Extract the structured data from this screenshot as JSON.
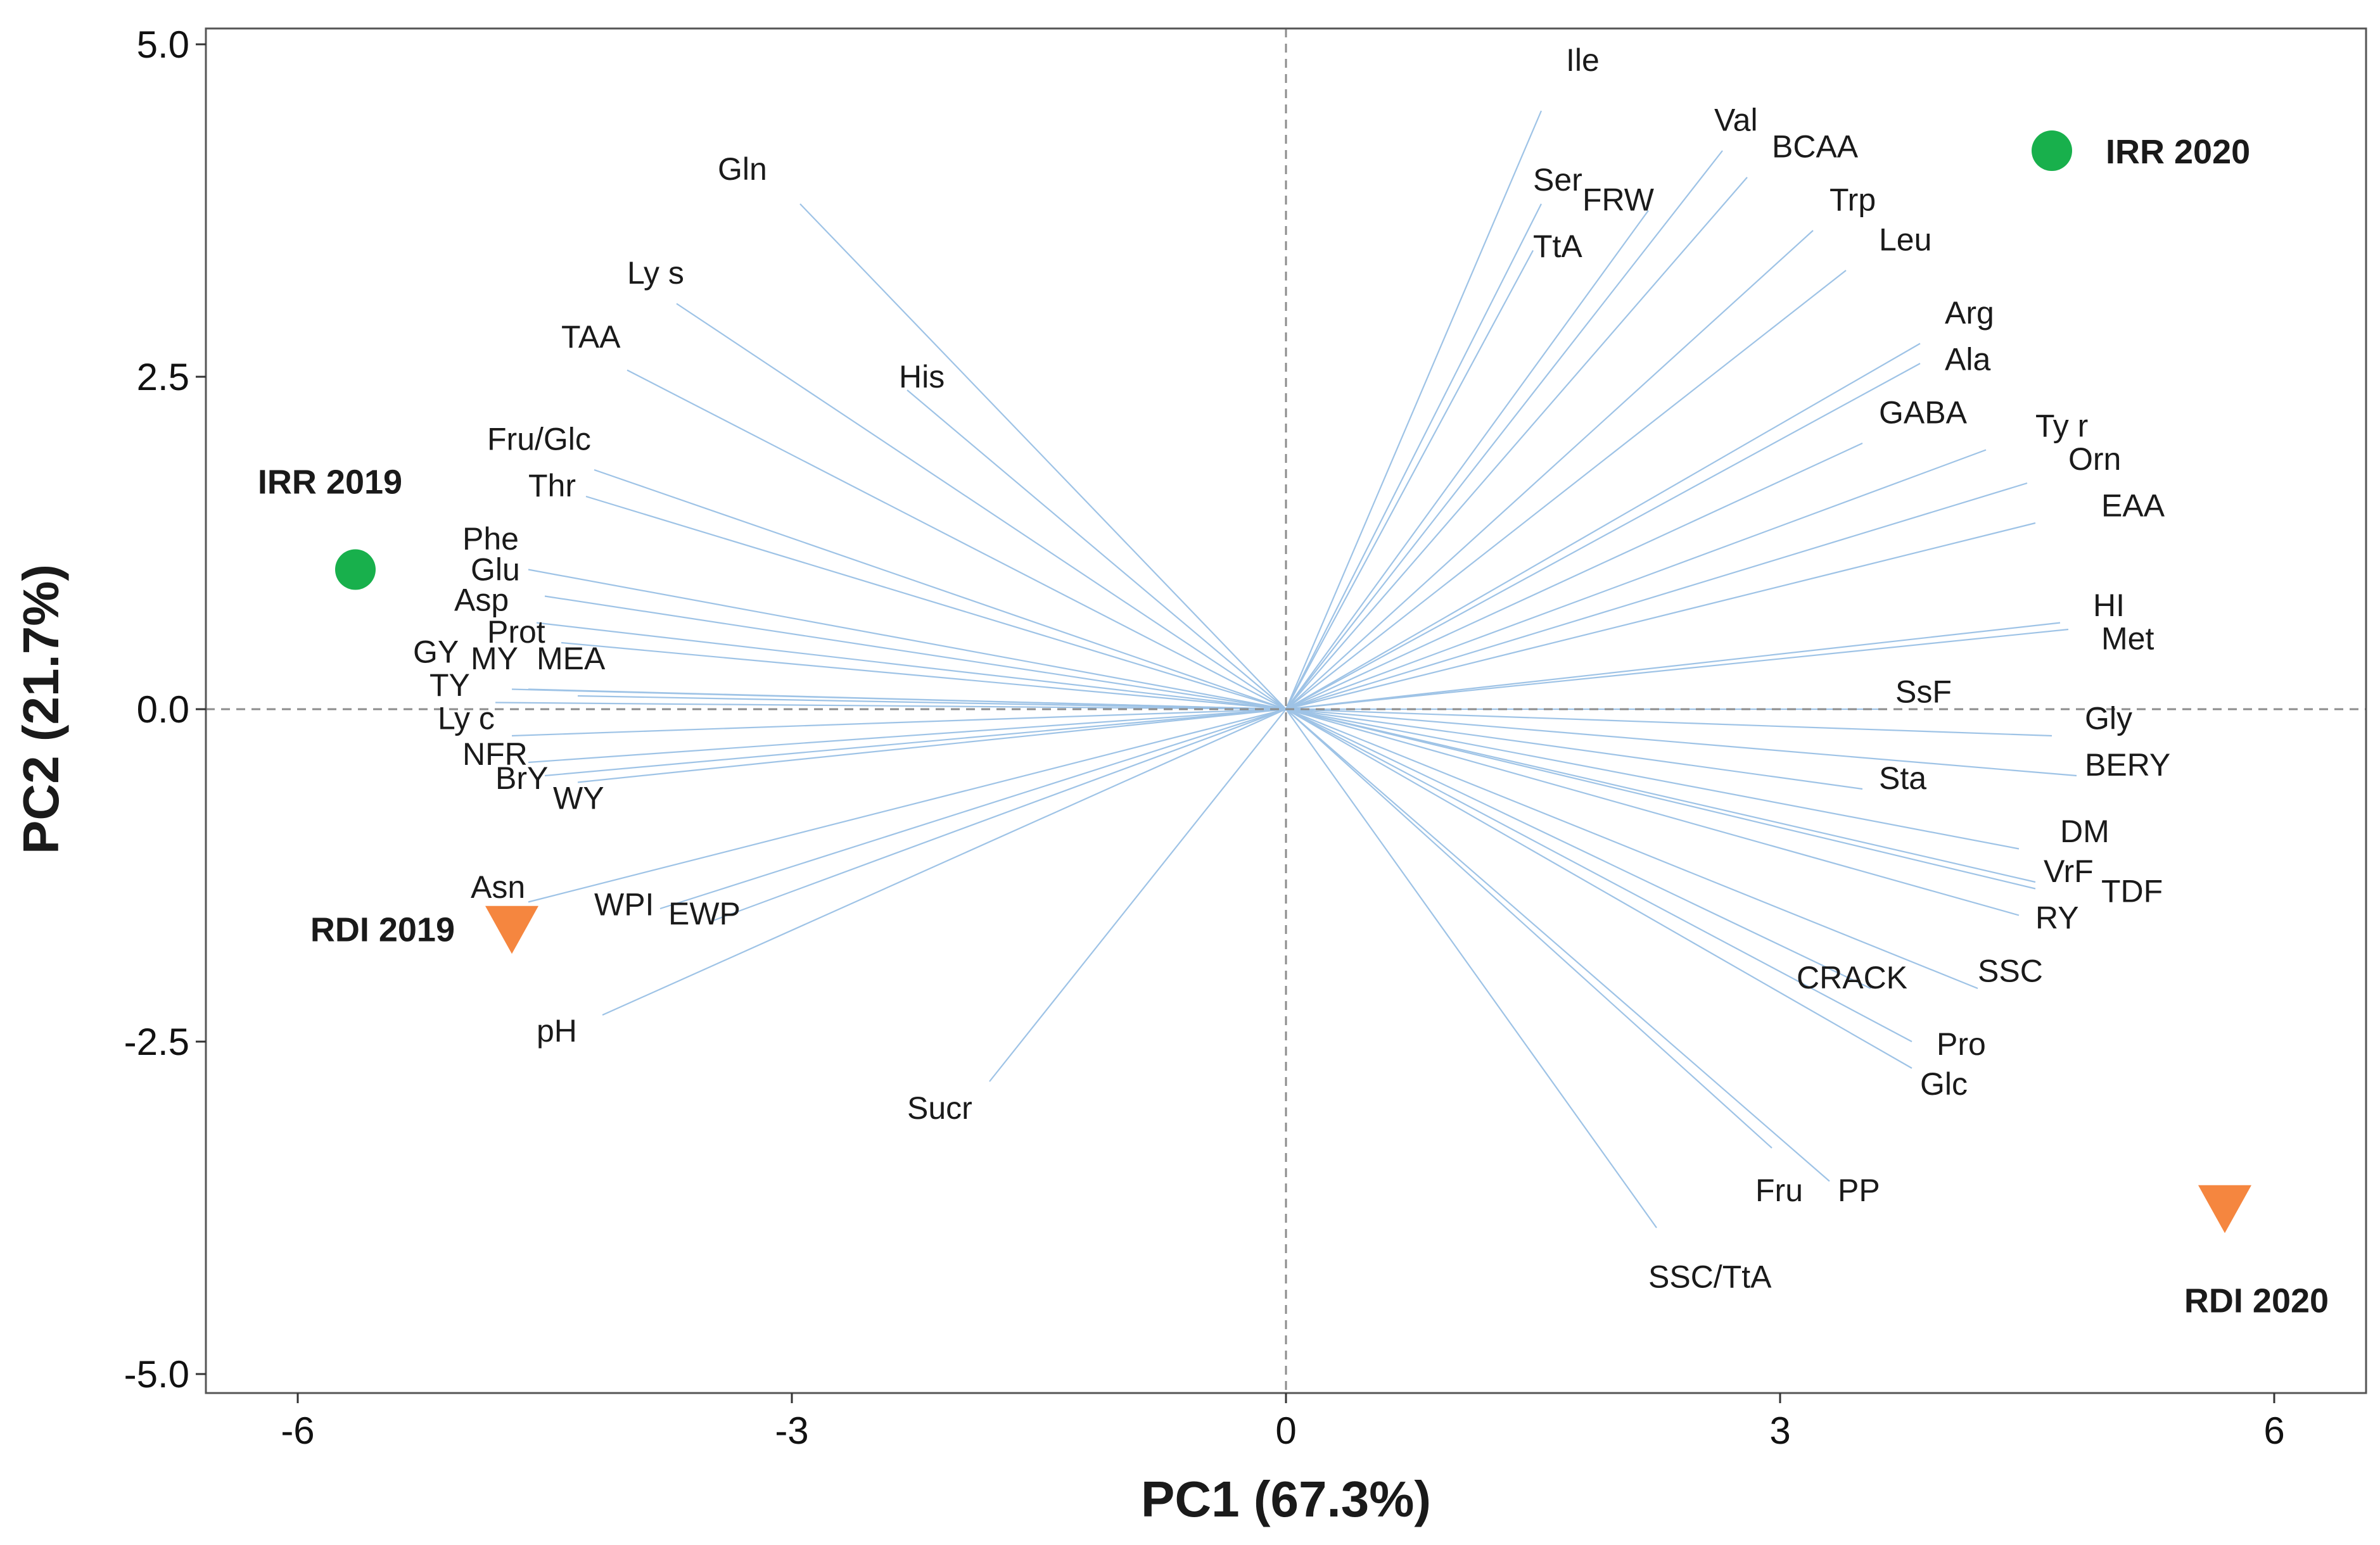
{
  "chart_data": {
    "type": "scatter",
    "subtype": "pca-biplot",
    "xlabel": "PC1 (67.3%)",
    "ylabel": "PC2 (21.7%)",
    "xlim": [
      -6.5,
      6.5
    ],
    "ylim": [
      -5.1,
      5.1
    ],
    "x_ticks": [
      {
        "value": -6,
        "label": "-6"
      },
      {
        "value": -3,
        "label": "-3"
      },
      {
        "value": 0,
        "label": "0"
      },
      {
        "value": 3,
        "label": "3"
      },
      {
        "value": 6,
        "label": "6"
      }
    ],
    "y_ticks": [
      {
        "value": 5,
        "label": "5.0"
      },
      {
        "value": 2.5,
        "label": "2.5"
      },
      {
        "value": 0,
        "label": "0.0"
      },
      {
        "value": -2.5,
        "label": "-2.5"
      },
      {
        "value": -5,
        "label": "-5.0"
      }
    ],
    "reference_lines": {
      "x": 0,
      "y": 0,
      "style": "dashed"
    },
    "colors": {
      "loading_line": "#9ec3e6",
      "irr_marker": "#18b04c",
      "rdi_marker": "#f5863f",
      "axis": "#333333",
      "reference": "#8c8c8c"
    },
    "observations": [
      {
        "name": "IRR 2019",
        "x": -5.65,
        "y": 1.05,
        "marker": "circle",
        "color": "#18b04c"
      },
      {
        "name": "IRR 2020",
        "x": 4.65,
        "y": 4.2,
        "marker": "circle",
        "color": "#18b04c"
      },
      {
        "name": "RDI 2019",
        "x": -4.7,
        "y": -1.65,
        "marker": "triangle-down",
        "color": "#f5863f"
      },
      {
        "name": "RDI 2020",
        "x": 5.7,
        "y": -3.75,
        "marker": "triangle-down",
        "color": "#f5863f"
      }
    ],
    "loadings": [
      {
        "name": "Ile",
        "end": [
          1.55,
          4.5
        ],
        "label": [
          1.7,
          4.8
        ]
      },
      {
        "name": "Val",
        "end": [
          2.65,
          4.2
        ],
        "label": [
          2.6,
          4.35
        ]
      },
      {
        "name": "BCAA",
        "end": [
          2.8,
          4.0
        ],
        "label": [
          2.95,
          4.15
        ]
      },
      {
        "name": "Ser",
        "end": [
          1.55,
          3.8
        ],
        "label": [
          1.5,
          3.9
        ]
      },
      {
        "name": "FRW",
        "end": [
          2.2,
          3.75
        ],
        "label": [
          1.8,
          3.75
        ]
      },
      {
        "name": "TtA",
        "end": [
          1.5,
          3.45
        ],
        "label": [
          1.5,
          3.4
        ]
      },
      {
        "name": "Trp",
        "end": [
          3.2,
          3.6
        ],
        "label": [
          3.3,
          3.75
        ]
      },
      {
        "name": "Leu",
        "end": [
          3.4,
          3.3
        ],
        "label": [
          3.6,
          3.45
        ]
      },
      {
        "name": "Arg",
        "end": [
          3.85,
          2.75
        ],
        "label": [
          4.0,
          2.9
        ]
      },
      {
        "name": "Ala",
        "end": [
          3.85,
          2.6
        ],
        "label": [
          4.0,
          2.55
        ]
      },
      {
        "name": "GABA",
        "end": [
          3.5,
          2.0
        ],
        "label": [
          3.6,
          2.15
        ]
      },
      {
        "name": "Ty r",
        "end": [
          4.25,
          1.95
        ],
        "label": [
          4.55,
          2.05
        ]
      },
      {
        "name": "Orn",
        "end": [
          4.5,
          1.7
        ],
        "label": [
          4.75,
          1.8
        ]
      },
      {
        "name": "EAA",
        "end": [
          4.55,
          1.4
        ],
        "label": [
          4.95,
          1.45
        ]
      },
      {
        "name": "HI",
        "end": [
          4.7,
          0.65
        ],
        "label": [
          4.9,
          0.7
        ]
      },
      {
        "name": "Met",
        "end": [
          4.75,
          0.6
        ],
        "label": [
          4.95,
          0.45
        ]
      },
      {
        "name": "SsF",
        "end": [
          3.6,
          0.0
        ],
        "label": [
          3.7,
          0.05
        ]
      },
      {
        "name": "Gly",
        "end": [
          4.65,
          -0.2
        ],
        "label": [
          4.85,
          -0.15
        ]
      },
      {
        "name": "Sta",
        "end": [
          3.5,
          -0.6
        ],
        "label": [
          3.6,
          -0.6
        ]
      },
      {
        "name": "BERY",
        "end": [
          4.8,
          -0.5
        ],
        "label": [
          4.85,
          -0.5
        ]
      },
      {
        "name": "DM",
        "end": [
          4.45,
          -1.05
        ],
        "label": [
          4.7,
          -1.0
        ]
      },
      {
        "name": "VrF",
        "end": [
          4.55,
          -1.3
        ],
        "label": [
          4.6,
          -1.3
        ]
      },
      {
        "name": "TDF",
        "end": [
          4.55,
          -1.35
        ],
        "label": [
          4.95,
          -1.45
        ]
      },
      {
        "name": "RY",
        "end": [
          4.45,
          -1.55
        ],
        "label": [
          4.55,
          -1.65
        ]
      },
      {
        "name": "SSC",
        "end": [
          4.2,
          -2.1
        ],
        "label": [
          4.2,
          -2.05
        ]
      },
      {
        "name": "CRACK",
        "end": [
          3.55,
          -2.1
        ],
        "label": [
          3.1,
          -2.1
        ]
      },
      {
        "name": "Pro",
        "end": [
          3.8,
          -2.5
        ],
        "label": [
          3.95,
          -2.6
        ]
      },
      {
        "name": "Glc",
        "end": [
          3.8,
          -2.7
        ],
        "label": [
          3.85,
          -2.9
        ]
      },
      {
        "name": "Fru",
        "end": [
          2.95,
          -3.3
        ],
        "label": [
          2.85,
          -3.7
        ]
      },
      {
        "name": "PP",
        "end": [
          3.3,
          -3.55
        ],
        "label": [
          3.35,
          -3.7
        ]
      },
      {
        "name": "SSC/TtA",
        "end": [
          2.25,
          -3.9
        ],
        "label": [
          2.2,
          -4.35
        ]
      },
      {
        "name": "Gln",
        "end": [
          -2.95,
          3.8
        ],
        "label": [
          -3.45,
          3.98
        ]
      },
      {
        "name": "Ly s",
        "end": [
          -3.7,
          3.05
        ],
        "label": [
          -4.0,
          3.2
        ]
      },
      {
        "name": "TAA",
        "end": [
          -4.0,
          2.55
        ],
        "label": [
          -4.4,
          2.72
        ]
      },
      {
        "name": "His",
        "end": [
          -2.3,
          2.4
        ],
        "label": [
          -2.35,
          2.42
        ]
      },
      {
        "name": "Fru/Glc",
        "end": [
          -4.2,
          1.8
        ],
        "label": [
          -4.85,
          1.95
        ]
      },
      {
        "name": "Thr",
        "end": [
          -4.25,
          1.6
        ],
        "label": [
          -4.6,
          1.6
        ]
      },
      {
        "name": "Phe",
        "end": [
          -4.6,
          1.05
        ],
        "label": [
          -5.0,
          1.2
        ]
      },
      {
        "name": "Glu",
        "end": [
          -4.5,
          0.85
        ],
        "label": [
          -4.95,
          0.97
        ]
      },
      {
        "name": "Asp",
        "end": [
          -4.55,
          0.65
        ],
        "label": [
          -5.05,
          0.74
        ]
      },
      {
        "name": "Prot",
        "end": [
          -4.4,
          0.5
        ],
        "label": [
          -4.85,
          0.5
        ]
      },
      {
        "name": "GY",
        "end": [
          -4.7,
          0.15
        ],
        "label": [
          -5.3,
          0.35
        ]
      },
      {
        "name": "MY",
        "end": [
          -4.6,
          0.15
        ],
        "label": [
          -4.95,
          0.3
        ]
      },
      {
        "name": "MEA",
        "end": [
          -4.3,
          0.1
        ],
        "label": [
          -4.55,
          0.3
        ]
      },
      {
        "name": "TY",
        "end": [
          -4.8,
          0.05
        ],
        "label": [
          -5.2,
          0.1
        ]
      },
      {
        "name": "Ly c",
        "end": [
          -4.7,
          -0.2
        ],
        "label": [
          -5.15,
          -0.15
        ]
      },
      {
        "name": "NFR",
        "end": [
          -4.6,
          -0.4
        ],
        "label": [
          -5.0,
          -0.42
        ]
      },
      {
        "name": "BrY",
        "end": [
          -4.5,
          -0.5
        ],
        "label": [
          -4.8,
          -0.6
        ]
      },
      {
        "name": "WY",
        "end": [
          -4.3,
          -0.55
        ],
        "label": [
          -4.45,
          -0.75
        ]
      },
      {
        "name": "Asn",
        "end": [
          -4.6,
          -1.45
        ],
        "label": [
          -4.95,
          -1.42
        ]
      },
      {
        "name": "WPI",
        "end": [
          -3.8,
          -1.5
        ],
        "label": [
          -4.2,
          -1.55
        ]
      },
      {
        "name": "EWP",
        "end": [
          -3.5,
          -1.6
        ],
        "label": [
          -3.75,
          -1.62
        ]
      },
      {
        "name": "pH",
        "end": [
          -4.15,
          -2.3
        ],
        "label": [
          -4.55,
          -2.5
        ]
      },
      {
        "name": "Sucr",
        "end": [
          -1.8,
          -2.8
        ],
        "label": [
          -2.3,
          -3.08
        ]
      }
    ]
  }
}
